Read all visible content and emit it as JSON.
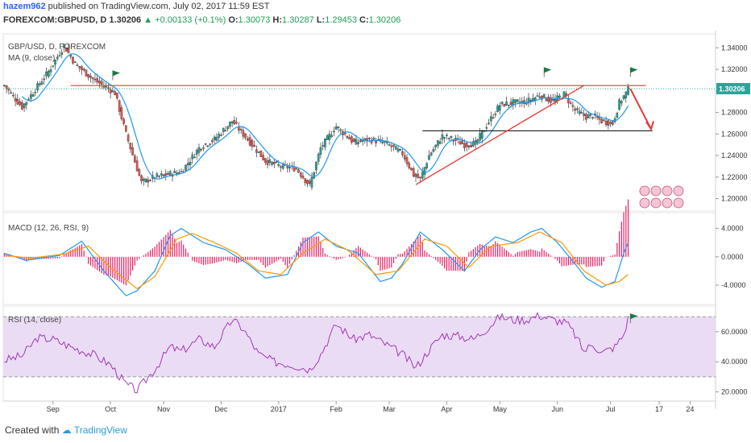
{
  "header": {
    "user": "hazem962",
    "published": "published on TradingView.com, July 02, 2017 11:59 EST",
    "symbol": "FOREXCOM:GBPUSD, D",
    "last": "1.30206",
    "change": "▲ +0.00133 (+0.1%)",
    "o_label": "O:",
    "o_value": "1.30073",
    "h_label": "H:",
    "h_value": "1.30287",
    "l_label": "L:",
    "l_value": "1.29453",
    "c_label": "C:",
    "c_value": "1.30206"
  },
  "footer": {
    "created": "Created with",
    "brand": "TradingView"
  },
  "colors": {
    "up": "#26a69a",
    "down": "#ef5350",
    "ma": "#2196f3",
    "hline": "#e53935",
    "support": "#000000",
    "arrow": "#e53935",
    "macd": "#2196f3",
    "signal": "#ff9800",
    "hist": "#e91e63",
    "rsi_line": "#9c27b0",
    "rsi_band": "#eadcf4",
    "flag": "#1b7a43"
  },
  "chart_data": [
    {
      "type": "candlestick",
      "title": "GBP/USD, D, FOREXCOM",
      "indicator": "MA (9, close)",
      "ylim": [
        1.19,
        1.35
      ],
      "yticks": [
        1.34,
        1.32,
        1.3,
        1.28,
        1.26,
        1.24,
        1.22,
        1.2
      ],
      "ytick_labels": [
        "1.34000",
        "1.32000",
        "1.30000",
        "1.28000",
        "1.26000",
        "1.24000",
        "1.22000",
        "1.20000"
      ],
      "last_price_label": "1.30206",
      "resistance": 1.305,
      "support": 1.263,
      "price_path": [
        [
          0,
          1.305
        ],
        [
          8,
          1.285
        ],
        [
          20,
          1.318
        ],
        [
          27,
          1.342
        ],
        [
          32,
          1.325
        ],
        [
          40,
          1.311
        ],
        [
          50,
          1.298
        ],
        [
          55,
          1.26
        ],
        [
          62,
          1.215
        ],
        [
          68,
          1.22
        ],
        [
          75,
          1.223
        ],
        [
          80,
          1.225
        ],
        [
          88,
          1.247
        ],
        [
          95,
          1.255
        ],
        [
          103,
          1.272
        ],
        [
          110,
          1.255
        ],
        [
          118,
          1.235
        ],
        [
          125,
          1.23
        ],
        [
          132,
          1.228
        ],
        [
          138,
          1.212
        ],
        [
          143,
          1.247
        ],
        [
          150,
          1.267
        ],
        [
          158,
          1.252
        ],
        [
          165,
          1.255
        ],
        [
          172,
          1.252
        ],
        [
          180,
          1.242
        ],
        [
          185,
          1.222
        ],
        [
          188,
          1.218
        ],
        [
          192,
          1.24
        ],
        [
          198,
          1.258
        ],
        [
          203,
          1.255
        ],
        [
          208,
          1.25
        ],
        [
          213,
          1.251
        ],
        [
          218,
          1.268
        ],
        [
          224,
          1.287
        ],
        [
          230,
          1.289
        ],
        [
          236,
          1.29
        ],
        [
          242,
          1.296
        ],
        [
          248,
          1.29
        ],
        [
          253,
          1.297
        ],
        [
          258,
          1.282
        ],
        [
          263,
          1.276
        ],
        [
          266,
          1.277
        ],
        [
          270,
          1.272
        ],
        [
          275,
          1.27
        ],
        [
          278,
          1.289
        ],
        [
          282,
          1.301
        ]
      ]
    },
    {
      "type": "line",
      "title": "MACD (12, 26, RSI, 9)",
      "ylim": [
        -6.5,
        6
      ],
      "yticks": [
        4.0,
        0.0,
        -4.0
      ],
      "ytick_labels": [
        "4.0000",
        "0.0000",
        "-4.0000"
      ],
      "series": [
        {
          "name": "MACD",
          "points": [
            [
              0,
              0.5
            ],
            [
              10,
              -0.5
            ],
            [
              25,
              0.2
            ],
            [
              35,
              2.2
            ],
            [
              45,
              -2
            ],
            [
              55,
              -5.5
            ],
            [
              60,
              -4.8
            ],
            [
              68,
              -2
            ],
            [
              75,
              3
            ],
            [
              80,
              4
            ],
            [
              90,
              2
            ],
            [
              100,
              1
            ],
            [
              110,
              -1
            ],
            [
              118,
              -3
            ],
            [
              128,
              -2.5
            ],
            [
              135,
              2
            ],
            [
              142,
              3.5
            ],
            [
              150,
              1.5
            ],
            [
              160,
              0.5
            ],
            [
              170,
              -3.5
            ],
            [
              175,
              -3
            ],
            [
              180,
              -1
            ],
            [
              188,
              3.5
            ],
            [
              198,
              1
            ],
            [
              208,
              -2
            ],
            [
              215,
              1
            ],
            [
              222,
              2.8
            ],
            [
              230,
              2
            ],
            [
              238,
              3.5
            ],
            [
              243,
              4
            ],
            [
              250,
              2
            ],
            [
              258,
              -1
            ],
            [
              263,
              -3
            ],
            [
              270,
              -4.3
            ],
            [
              276,
              -3.5
            ],
            [
              280,
              0.5
            ],
            [
              282,
              2
            ]
          ]
        },
        {
          "name": "signal",
          "points": [
            [
              0,
              0.2
            ],
            [
              12,
              -0.2
            ],
            [
              27,
              0.4
            ],
            [
              38,
              1.5
            ],
            [
              48,
              -1.5
            ],
            [
              60,
              -4.5
            ],
            [
              68,
              -2.8
            ],
            [
              78,
              2.5
            ],
            [
              85,
              3.3
            ],
            [
              95,
              2
            ],
            [
              105,
              0.5
            ],
            [
              115,
              -2
            ],
            [
              125,
              -2.5
            ],
            [
              135,
              0.5
            ],
            [
              145,
              2.5
            ],
            [
              155,
              1
            ],
            [
              168,
              -2.5
            ],
            [
              178,
              -2
            ],
            [
              190,
              2.5
            ],
            [
              200,
              1.5
            ],
            [
              210,
              -1.5
            ],
            [
              220,
              1.5
            ],
            [
              232,
              2
            ],
            [
              242,
              3.5
            ],
            [
              252,
              2
            ],
            [
              262,
              -2
            ],
            [
              272,
              -4
            ],
            [
              278,
              -3.5
            ],
            [
              282,
              -2.5
            ]
          ]
        }
      ]
    },
    {
      "type": "line",
      "title": "RSI (14, close)",
      "ylim": [
        16,
        76
      ],
      "band": [
        30,
        70
      ],
      "yticks": [
        60,
        40,
        20
      ],
      "ytick_labels": [
        "60.0000",
        "40.0000",
        "20.0000"
      ],
      "series": [
        {
          "name": "RSI",
          "points": [
            [
              0,
              41
            ],
            [
              8,
              44
            ],
            [
              15,
              56
            ],
            [
              22,
              55
            ],
            [
              30,
              50
            ],
            [
              40,
              45
            ],
            [
              48,
              38
            ],
            [
              55,
              25
            ],
            [
              60,
              21
            ],
            [
              68,
              35
            ],
            [
              75,
              50
            ],
            [
              80,
              47
            ],
            [
              88,
              55
            ],
            [
              95,
              50
            ],
            [
              103,
              68
            ],
            [
              108,
              62
            ],
            [
              115,
              45
            ],
            [
              122,
              40
            ],
            [
              130,
              38
            ],
            [
              138,
              35
            ],
            [
              143,
              45
            ],
            [
              150,
              65
            ],
            [
              158,
              55
            ],
            [
              165,
              58
            ],
            [
              172,
              52
            ],
            [
              180,
              45
            ],
            [
              186,
              36
            ],
            [
              192,
              48
            ],
            [
              198,
              58
            ],
            [
              206,
              57
            ],
            [
              212,
              55
            ],
            [
              218,
              62
            ],
            [
              224,
              70
            ],
            [
              230,
              68
            ],
            [
              236,
              68
            ],
            [
              242,
              71
            ],
            [
              248,
              68
            ],
            [
              254,
              66
            ],
            [
              258,
              58
            ],
            [
              262,
              47
            ],
            [
              266,
              52
            ],
            [
              270,
              46
            ],
            [
              276,
              50
            ],
            [
              280,
              58
            ],
            [
              282,
              69
            ]
          ]
        }
      ]
    }
  ],
  "xaxis": {
    "ticks": [
      {
        "i": 22,
        "label": "Sep"
      },
      {
        "i": 48,
        "label": "Oct"
      },
      {
        "i": 72,
        "label": "Nov"
      },
      {
        "i": 98,
        "label": "Dec"
      },
      {
        "i": 124,
        "label": "2017"
      },
      {
        "i": 150,
        "label": "Feb"
      },
      {
        "i": 174,
        "label": "Mar"
      },
      {
        "i": 200,
        "label": "Apr"
      },
      {
        "i": 224,
        "label": "May"
      },
      {
        "i": 250,
        "label": "Jun"
      },
      {
        "i": 274,
        "label": "Jul"
      },
      {
        "i": 296,
        "label": "17"
      },
      {
        "i": 310,
        "label": "24"
      }
    ]
  },
  "flags": [
    {
      "i": 49,
      "v": 1.319
    },
    {
      "i": 244,
      "v": 1.322
    },
    {
      "i": 283,
      "v": 1.322
    }
  ]
}
